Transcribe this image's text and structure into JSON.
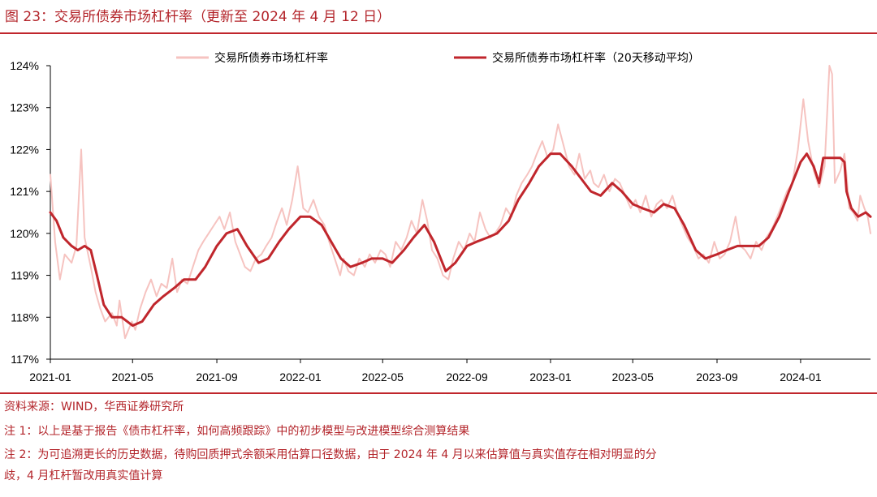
{
  "figure": {
    "title": "图 23：交易所债券市场杠杆率（更新至 2024 年 4 月 12 日）",
    "source": "资料来源：WIND，华西证券研究所",
    "note1": "注 1：以上是基于报告《债市杠杆率，如何高频跟踪》中的初步模型与改进模型综合测算结果",
    "note2a": "注 2：为可追溯更长的历史数据，待购回质押式余额采用估算口径数据，由于 2024 年 4 月以来估算值与真实值存在相对明显的分",
    "note2b": "歧，4 月杠杆暂改用真实值计算"
  },
  "colors": {
    "raw": "#f6c3c0",
    "ma": "#c0262c",
    "accent": "#b3242a"
  },
  "chart_data": {
    "type": "line",
    "x_ticks": [
      "2021-01",
      "2021-05",
      "2021-09",
      "2022-01",
      "2022-05",
      "2022-09",
      "2023-01",
      "2023-05",
      "2023-09",
      "2024-01"
    ],
    "y_ticks": [
      "117%",
      "118%",
      "119%",
      "120%",
      "121%",
      "122%",
      "123%",
      "124%"
    ],
    "ylim": [
      117,
      124
    ],
    "xlim": [
      "2021-01-01",
      "2024-04-12"
    ],
    "legend_position": "top",
    "grid": false,
    "series": [
      {
        "name": "交易所债券市场杠杆率",
        "style": "thin-light",
        "points": [
          [
            "2021-01-01",
            121.4
          ],
          [
            "2021-01-08",
            119.8
          ],
          [
            "2021-01-15",
            118.9
          ],
          [
            "2021-01-22",
            119.5
          ],
          [
            "2021-02-01",
            119.3
          ],
          [
            "2021-02-08",
            119.7
          ],
          [
            "2021-02-15",
            122.0
          ],
          [
            "2021-02-20",
            119.9
          ],
          [
            "2021-03-01",
            119.2
          ],
          [
            "2021-03-08",
            118.6
          ],
          [
            "2021-03-15",
            118.2
          ],
          [
            "2021-03-22",
            117.9
          ],
          [
            "2021-04-01",
            118.1
          ],
          [
            "2021-04-08",
            117.8
          ],
          [
            "2021-04-12",
            118.4
          ],
          [
            "2021-04-20",
            117.5
          ],
          [
            "2021-04-30",
            117.9
          ],
          [
            "2021-05-05",
            117.7
          ],
          [
            "2021-05-12",
            118.2
          ],
          [
            "2021-05-20",
            118.6
          ],
          [
            "2021-05-28",
            118.9
          ],
          [
            "2021-06-05",
            118.5
          ],
          [
            "2021-06-12",
            118.8
          ],
          [
            "2021-06-20",
            118.7
          ],
          [
            "2021-06-28",
            119.4
          ],
          [
            "2021-07-05",
            118.6
          ],
          [
            "2021-07-12",
            118.9
          ],
          [
            "2021-07-20",
            118.8
          ],
          [
            "2021-07-28",
            119.2
          ],
          [
            "2021-08-05",
            119.6
          ],
          [
            "2021-08-12",
            119.8
          ],
          [
            "2021-08-20",
            120.0
          ],
          [
            "2021-08-28",
            120.2
          ],
          [
            "2021-09-05",
            120.4
          ],
          [
            "2021-09-12",
            120.1
          ],
          [
            "2021-09-20",
            120.5
          ],
          [
            "2021-09-28",
            119.8
          ],
          [
            "2021-10-05",
            119.5
          ],
          [
            "2021-10-12",
            119.2
          ],
          [
            "2021-10-20",
            119.1
          ],
          [
            "2021-10-28",
            119.4
          ],
          [
            "2021-11-05",
            119.5
          ],
          [
            "2021-11-12",
            119.7
          ],
          [
            "2021-11-20",
            119.9
          ],
          [
            "2021-11-28",
            120.3
          ],
          [
            "2021-12-05",
            120.6
          ],
          [
            "2021-12-12",
            120.2
          ],
          [
            "2021-12-20",
            120.8
          ],
          [
            "2021-12-28",
            121.6
          ],
          [
            "2022-01-05",
            120.6
          ],
          [
            "2022-01-12",
            120.5
          ],
          [
            "2022-01-20",
            120.8
          ],
          [
            "2022-01-28",
            120.4
          ],
          [
            "2022-02-05",
            120.2
          ],
          [
            "2022-02-12",
            119.8
          ],
          [
            "2022-02-20",
            119.4
          ],
          [
            "2022-02-28",
            119.0
          ],
          [
            "2022-03-05",
            119.4
          ],
          [
            "2022-03-12",
            119.1
          ],
          [
            "2022-03-20",
            119.0
          ],
          [
            "2022-03-28",
            119.4
          ],
          [
            "2022-04-05",
            119.2
          ],
          [
            "2022-04-12",
            119.5
          ],
          [
            "2022-04-20",
            119.3
          ],
          [
            "2022-04-28",
            119.6
          ],
          [
            "2022-05-05",
            119.5
          ],
          [
            "2022-05-12",
            119.2
          ],
          [
            "2022-05-20",
            119.8
          ],
          [
            "2022-05-28",
            119.6
          ],
          [
            "2022-06-05",
            119.9
          ],
          [
            "2022-06-12",
            120.3
          ],
          [
            "2022-06-20",
            120.0
          ],
          [
            "2022-06-28",
            120.8
          ],
          [
            "2022-07-05",
            120.3
          ],
          [
            "2022-07-12",
            119.6
          ],
          [
            "2022-07-20",
            119.4
          ],
          [
            "2022-07-28",
            119.0
          ],
          [
            "2022-08-05",
            118.9
          ],
          [
            "2022-08-12",
            119.4
          ],
          [
            "2022-08-20",
            119.8
          ],
          [
            "2022-08-28",
            119.6
          ],
          [
            "2022-09-05",
            120.0
          ],
          [
            "2022-09-12",
            119.8
          ],
          [
            "2022-09-20",
            120.5
          ],
          [
            "2022-09-28",
            120.1
          ],
          [
            "2022-10-05",
            119.9
          ],
          [
            "2022-10-12",
            120.0
          ],
          [
            "2022-10-20",
            120.2
          ],
          [
            "2022-10-28",
            120.6
          ],
          [
            "2022-11-05",
            120.4
          ],
          [
            "2022-11-12",
            120.9
          ],
          [
            "2022-11-20",
            121.2
          ],
          [
            "2022-11-28",
            121.4
          ],
          [
            "2022-12-05",
            121.6
          ],
          [
            "2022-12-12",
            121.9
          ],
          [
            "2022-12-20",
            122.2
          ],
          [
            "2022-12-28",
            121.8
          ],
          [
            "2023-01-05",
            122.0
          ],
          [
            "2023-01-12",
            122.6
          ],
          [
            "2023-01-20",
            122.1
          ],
          [
            "2023-01-28",
            121.6
          ],
          [
            "2023-02-05",
            121.4
          ],
          [
            "2023-02-12",
            121.9
          ],
          [
            "2023-02-20",
            121.3
          ],
          [
            "2023-02-28",
            121.5
          ],
          [
            "2023-03-05",
            121.2
          ],
          [
            "2023-03-12",
            121.1
          ],
          [
            "2023-03-20",
            121.4
          ],
          [
            "2023-03-28",
            121.0
          ],
          [
            "2023-04-05",
            121.3
          ],
          [
            "2023-04-12",
            121.2
          ],
          [
            "2023-04-20",
            120.9
          ],
          [
            "2023-04-28",
            120.6
          ],
          [
            "2023-05-05",
            120.8
          ],
          [
            "2023-05-12",
            120.5
          ],
          [
            "2023-05-20",
            120.9
          ],
          [
            "2023-05-28",
            120.4
          ],
          [
            "2023-06-05",
            120.7
          ],
          [
            "2023-06-12",
            120.8
          ],
          [
            "2023-06-20",
            120.6
          ],
          [
            "2023-06-28",
            120.9
          ],
          [
            "2023-07-05",
            120.5
          ],
          [
            "2023-07-12",
            120.2
          ],
          [
            "2023-07-20",
            119.9
          ],
          [
            "2023-07-28",
            119.7
          ],
          [
            "2023-08-05",
            119.4
          ],
          [
            "2023-08-12",
            119.5
          ],
          [
            "2023-08-20",
            119.3
          ],
          [
            "2023-08-28",
            119.8
          ],
          [
            "2023-09-05",
            119.4
          ],
          [
            "2023-09-12",
            119.5
          ],
          [
            "2023-09-20",
            119.8
          ],
          [
            "2023-09-28",
            120.4
          ],
          [
            "2023-10-05",
            119.7
          ],
          [
            "2023-10-12",
            119.6
          ],
          [
            "2023-10-20",
            119.4
          ],
          [
            "2023-10-28",
            119.8
          ],
          [
            "2023-11-05",
            119.6
          ],
          [
            "2023-11-12",
            119.9
          ],
          [
            "2023-11-20",
            120.1
          ],
          [
            "2023-11-28",
            120.4
          ],
          [
            "2023-12-05",
            120.7
          ],
          [
            "2023-12-12",
            121.0
          ],
          [
            "2023-12-20",
            121.2
          ],
          [
            "2023-12-28",
            122.0
          ],
          [
            "2024-01-05",
            123.2
          ],
          [
            "2024-01-12",
            122.2
          ],
          [
            "2024-01-20",
            121.5
          ],
          [
            "2024-01-28",
            121.1
          ],
          [
            "2024-02-05",
            121.6
          ],
          [
            "2024-02-12",
            124.0
          ],
          [
            "2024-02-16",
            123.8
          ],
          [
            "2024-02-20",
            121.2
          ],
          [
            "2024-02-28",
            121.5
          ],
          [
            "2024-03-05",
            121.9
          ],
          [
            "2024-03-08",
            121.4
          ],
          [
            "2024-03-12",
            120.6
          ],
          [
            "2024-03-18",
            120.5
          ],
          [
            "2024-03-24",
            120.3
          ],
          [
            "2024-03-28",
            120.9
          ],
          [
            "2024-04-03",
            120.6
          ],
          [
            "2024-04-08",
            120.4
          ],
          [
            "2024-04-12",
            120.0
          ]
        ]
      },
      {
        "name": "交易所债券市场杠杆率（20天移动平均）",
        "style": "thick-dark",
        "points": [
          [
            "2021-01-01",
            120.5
          ],
          [
            "2021-01-10",
            120.3
          ],
          [
            "2021-01-20",
            119.9
          ],
          [
            "2021-02-01",
            119.7
          ],
          [
            "2021-02-10",
            119.6
          ],
          [
            "2021-02-20",
            119.7
          ],
          [
            "2021-03-01",
            119.6
          ],
          [
            "2021-03-10",
            119.0
          ],
          [
            "2021-03-20",
            118.3
          ],
          [
            "2021-04-01",
            118.0
          ],
          [
            "2021-04-15",
            118.0
          ],
          [
            "2021-05-01",
            117.8
          ],
          [
            "2021-05-15",
            117.9
          ],
          [
            "2021-06-01",
            118.3
          ],
          [
            "2021-06-15",
            118.5
          ],
          [
            "2021-07-01",
            118.7
          ],
          [
            "2021-07-15",
            118.9
          ],
          [
            "2021-08-01",
            118.9
          ],
          [
            "2021-08-15",
            119.2
          ],
          [
            "2021-09-01",
            119.7
          ],
          [
            "2021-09-15",
            120.0
          ],
          [
            "2021-10-01",
            120.1
          ],
          [
            "2021-10-15",
            119.7
          ],
          [
            "2021-11-01",
            119.3
          ],
          [
            "2021-11-15",
            119.4
          ],
          [
            "2021-12-01",
            119.8
          ],
          [
            "2021-12-15",
            120.1
          ],
          [
            "2022-01-01",
            120.4
          ],
          [
            "2022-01-15",
            120.4
          ],
          [
            "2022-02-01",
            120.2
          ],
          [
            "2022-02-15",
            119.8
          ],
          [
            "2022-03-01",
            119.4
          ],
          [
            "2022-03-15",
            119.2
          ],
          [
            "2022-04-01",
            119.3
          ],
          [
            "2022-04-15",
            119.4
          ],
          [
            "2022-05-01",
            119.4
          ],
          [
            "2022-05-15",
            119.3
          ],
          [
            "2022-06-01",
            119.6
          ],
          [
            "2022-06-15",
            119.9
          ],
          [
            "2022-07-01",
            120.2
          ],
          [
            "2022-07-15",
            119.8
          ],
          [
            "2022-08-01",
            119.1
          ],
          [
            "2022-08-15",
            119.3
          ],
          [
            "2022-09-01",
            119.7
          ],
          [
            "2022-09-15",
            119.8
          ],
          [
            "2022-10-01",
            119.9
          ],
          [
            "2022-10-15",
            120.0
          ],
          [
            "2022-11-01",
            120.3
          ],
          [
            "2022-11-15",
            120.8
          ],
          [
            "2022-12-01",
            121.2
          ],
          [
            "2022-12-15",
            121.6
          ],
          [
            "2023-01-01",
            121.9
          ],
          [
            "2023-01-15",
            121.9
          ],
          [
            "2023-02-01",
            121.6
          ],
          [
            "2023-02-15",
            121.3
          ],
          [
            "2023-03-01",
            121.0
          ],
          [
            "2023-03-15",
            120.9
          ],
          [
            "2023-04-01",
            121.2
          ],
          [
            "2023-04-15",
            121.0
          ],
          [
            "2023-05-01",
            120.7
          ],
          [
            "2023-05-15",
            120.6
          ],
          [
            "2023-06-01",
            120.5
          ],
          [
            "2023-06-15",
            120.7
          ],
          [
            "2023-07-01",
            120.6
          ],
          [
            "2023-07-15",
            120.2
          ],
          [
            "2023-08-01",
            119.6
          ],
          [
            "2023-08-15",
            119.4
          ],
          [
            "2023-09-01",
            119.5
          ],
          [
            "2023-09-15",
            119.6
          ],
          [
            "2023-10-01",
            119.7
          ],
          [
            "2023-10-15",
            119.7
          ],
          [
            "2023-11-01",
            119.7
          ],
          [
            "2023-11-15",
            119.9
          ],
          [
            "2023-12-01",
            120.4
          ],
          [
            "2023-12-15",
            121.0
          ],
          [
            "2024-01-01",
            121.7
          ],
          [
            "2024-01-10",
            121.9
          ],
          [
            "2024-01-20",
            121.6
          ],
          [
            "2024-01-28",
            121.2
          ],
          [
            "2024-02-03",
            121.8
          ],
          [
            "2024-02-15",
            121.8
          ],
          [
            "2024-02-28",
            121.8
          ],
          [
            "2024-03-05",
            121.7
          ],
          [
            "2024-03-08",
            121.0
          ],
          [
            "2024-03-15",
            120.6
          ],
          [
            "2024-03-25",
            120.4
          ],
          [
            "2024-04-05",
            120.5
          ],
          [
            "2024-04-12",
            120.4
          ]
        ]
      }
    ]
  }
}
